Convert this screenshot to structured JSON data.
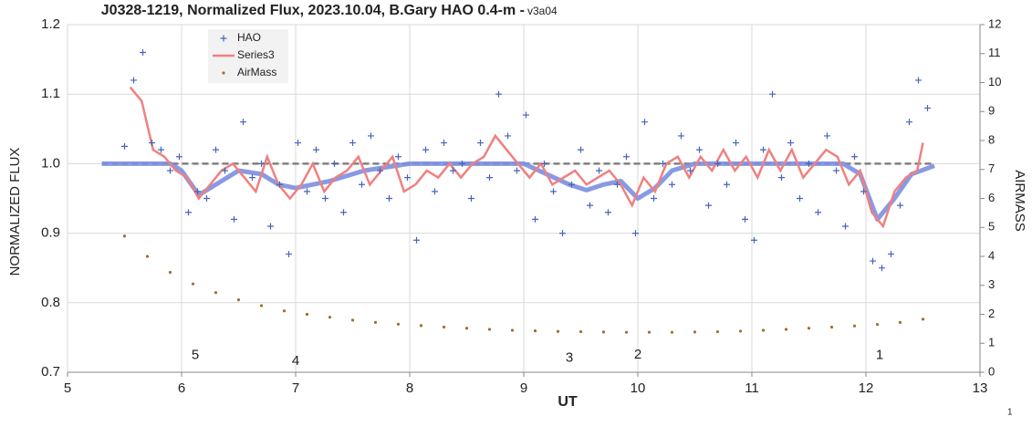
{
  "chart_data": {
    "type": "scatter",
    "title": "J0328-1219, Normalized Flux, 2023.10.04, B.Gary HAO 0.4-m - ",
    "subtitle": "v3a04",
    "x_label": "UT",
    "y_label": "NORMALIZED FLUX",
    "y2_label": "AIRMASS",
    "footer": "1",
    "xlim": [
      5,
      13
    ],
    "xticks": [
      5,
      6,
      7,
      8,
      9,
      10,
      11,
      12,
      13
    ],
    "ylim": [
      0.7,
      1.2
    ],
    "yticks": [
      {
        "value": 0.7,
        "label": "0.7"
      },
      {
        "value": 0.8,
        "label": "0.8"
      },
      {
        "value": 0.9,
        "label": "0.9"
      },
      {
        "value": 1.0,
        "label": "1.0"
      },
      {
        "value": 1.1,
        "label": "1.1"
      },
      {
        "value": 1.2,
        "label": "1.2"
      }
    ],
    "y2lim": [
      0,
      12
    ],
    "y2ticks": [
      0,
      1,
      2,
      3,
      4,
      5,
      6,
      7,
      8,
      9,
      10,
      11,
      12
    ],
    "grid": true,
    "legend": "top-left",
    "annotations": [
      {
        "text": "5",
        "x": 6.12,
        "y": 0.724
      },
      {
        "text": "4",
        "x": 7.0,
        "y": 0.716
      },
      {
        "text": "3",
        "x": 9.4,
        "y": 0.72
      },
      {
        "text": "2",
        "x": 10.0,
        "y": 0.725
      },
      {
        "text": "1",
        "x": 12.12,
        "y": 0.724
      }
    ],
    "series": [
      {
        "name": "HAO",
        "color": "#4466bb",
        "style": "plus",
        "x": [
          5.5,
          5.58,
          5.66,
          5.74,
          5.82,
          5.9,
          5.98,
          6.06,
          6.14,
          6.22,
          6.3,
          6.38,
          6.46,
          6.54,
          6.62,
          6.7,
          6.78,
          6.86,
          6.94,
          7.02,
          7.1,
          7.18,
          7.26,
          7.34,
          7.42,
          7.5,
          7.58,
          7.66,
          7.74,
          7.82,
          7.9,
          7.98,
          8.06,
          8.14,
          8.22,
          8.3,
          8.38,
          8.46,
          8.54,
          8.62,
          8.7,
          8.78,
          8.86,
          8.94,
          9.02,
          9.1,
          9.18,
          9.26,
          9.34,
          9.42,
          9.5,
          9.58,
          9.66,
          9.74,
          9.82,
          9.9,
          9.98,
          10.06,
          10.14,
          10.22,
          10.3,
          10.38,
          10.46,
          10.54,
          10.62,
          10.7,
          10.78,
          10.86,
          10.94,
          11.02,
          11.1,
          11.18,
          11.26,
          11.34,
          11.42,
          11.5,
          11.58,
          11.66,
          11.74,
          11.82,
          11.9,
          11.98,
          12.06,
          12.14,
          12.22,
          12.3,
          12.38,
          12.46,
          12.54
        ],
        "values": [
          1.025,
          1.12,
          1.16,
          1.03,
          1.02,
          0.99,
          1.01,
          0.93,
          0.96,
          0.95,
          1.02,
          0.99,
          0.92,
          1.06,
          0.98,
          1.0,
          0.91,
          0.97,
          0.87,
          1.03,
          0.96,
          1.02,
          0.95,
          1.0,
          0.93,
          1.03,
          0.97,
          1.04,
          0.99,
          0.95,
          1.01,
          0.98,
          0.89,
          1.02,
          0.96,
          1.03,
          0.99,
          1.0,
          0.95,
          1.03,
          0.98,
          1.1,
          1.04,
          0.99,
          1.07,
          0.92,
          1.0,
          0.96,
          0.9,
          0.97,
          1.02,
          0.94,
          0.99,
          0.93,
          0.97,
          1.01,
          0.9,
          1.06,
          0.95,
          1.0,
          0.97,
          1.04,
          0.99,
          1.02,
          0.94,
          1.0,
          0.97,
          1.03,
          0.92,
          0.89,
          1.02,
          1.1,
          0.98,
          1.03,
          0.95,
          1.0,
          0.93,
          1.04,
          0.99,
          0.91,
          1.01,
          0.96,
          0.86,
          0.85,
          0.87,
          0.94,
          1.06,
          1.12,
          1.08
        ]
      },
      {
        "name": "Series3",
        "color": "#f08080",
        "style": "line",
        "x": [
          5.55,
          5.65,
          5.75,
          5.85,
          5.95,
          6.05,
          6.15,
          6.25,
          6.35,
          6.45,
          6.55,
          6.65,
          6.75,
          6.85,
          6.95,
          7.05,
          7.15,
          7.25,
          7.35,
          7.45,
          7.55,
          7.65,
          7.75,
          7.85,
          7.95,
          8.05,
          8.15,
          8.25,
          8.35,
          8.45,
          8.55,
          8.65,
          8.75,
          8.85,
          8.95,
          9.05,
          9.15,
          9.25,
          9.35,
          9.45,
          9.55,
          9.65,
          9.75,
          9.85,
          9.95,
          10.05,
          10.15,
          10.25,
          10.35,
          10.45,
          10.55,
          10.65,
          10.75,
          10.85,
          10.95,
          11.05,
          11.15,
          11.25,
          11.35,
          11.45,
          11.55,
          11.65,
          11.75,
          11.85,
          11.95,
          12.05,
          12.15,
          12.25,
          12.35,
          12.45,
          12.5
        ],
        "values": [
          1.11,
          1.09,
          1.02,
          1.01,
          0.99,
          0.98,
          0.95,
          0.97,
          0.99,
          1.0,
          0.98,
          0.96,
          1.01,
          0.97,
          0.95,
          0.97,
          1.0,
          0.96,
          0.98,
          0.99,
          1.01,
          0.97,
          0.99,
          1.01,
          0.96,
          0.97,
          0.99,
          0.98,
          1.0,
          0.98,
          1.0,
          1.01,
          1.04,
          1.02,
          1.0,
          0.98,
          1.0,
          0.97,
          0.98,
          0.99,
          0.97,
          0.98,
          0.99,
          0.97,
          0.94,
          0.98,
          0.96,
          1.0,
          1.01,
          0.98,
          1.01,
          0.99,
          1.02,
          0.99,
          1.01,
          0.98,
          1.02,
          0.99,
          1.02,
          0.98,
          1.0,
          1.02,
          1.01,
          0.97,
          0.99,
          0.93,
          0.91,
          0.96,
          0.98,
          0.99,
          1.03
        ]
      },
      {
        "name": "AirMass",
        "color": "#a0702a",
        "style": "dots",
        "axis": "y2",
        "x": [
          5.5,
          5.7,
          5.9,
          6.1,
          6.3,
          6.5,
          6.7,
          6.9,
          7.1,
          7.3,
          7.5,
          7.7,
          7.9,
          8.1,
          8.3,
          8.5,
          8.7,
          8.9,
          9.1,
          9.3,
          9.5,
          9.7,
          9.9,
          10.1,
          10.3,
          10.5,
          10.7,
          10.9,
          11.1,
          11.3,
          11.5,
          11.7,
          11.9,
          12.1,
          12.3,
          12.5
        ],
        "values": [
          4.7,
          4.0,
          3.45,
          3.05,
          2.75,
          2.5,
          2.3,
          2.12,
          2.0,
          1.9,
          1.8,
          1.72,
          1.66,
          1.61,
          1.56,
          1.52,
          1.48,
          1.45,
          1.43,
          1.41,
          1.4,
          1.39,
          1.38,
          1.38,
          1.38,
          1.39,
          1.4,
          1.42,
          1.45,
          1.48,
          1.52,
          1.56,
          1.6,
          1.65,
          1.72,
          1.83
        ]
      },
      {
        "color": "#7b8fe0",
        "style": "thick",
        "x": [
          5.3,
          5.9,
          6.0,
          6.15,
          6.3,
          6.5,
          6.7,
          6.85,
          7.0,
          7.3,
          7.6,
          8.0,
          9.0,
          9.2,
          9.4,
          9.55,
          9.7,
          9.85,
          10.0,
          10.15,
          10.3,
          10.5,
          11.8,
          11.95,
          12.1,
          12.25,
          12.4,
          12.6
        ],
        "values": [
          1.0,
          1.0,
          0.99,
          0.955,
          0.97,
          0.99,
          0.985,
          0.97,
          0.965,
          0.975,
          0.99,
          1.0,
          1.0,
          0.985,
          0.97,
          0.962,
          0.97,
          0.975,
          0.95,
          0.965,
          0.99,
          1.0,
          1.0,
          0.985,
          0.92,
          0.95,
          0.985,
          0.997
        ]
      },
      {
        "color": "#808080",
        "style": "dashed",
        "x": [
          5.3,
          12.6
        ],
        "values": [
          1.0,
          1.0
        ]
      }
    ]
  }
}
